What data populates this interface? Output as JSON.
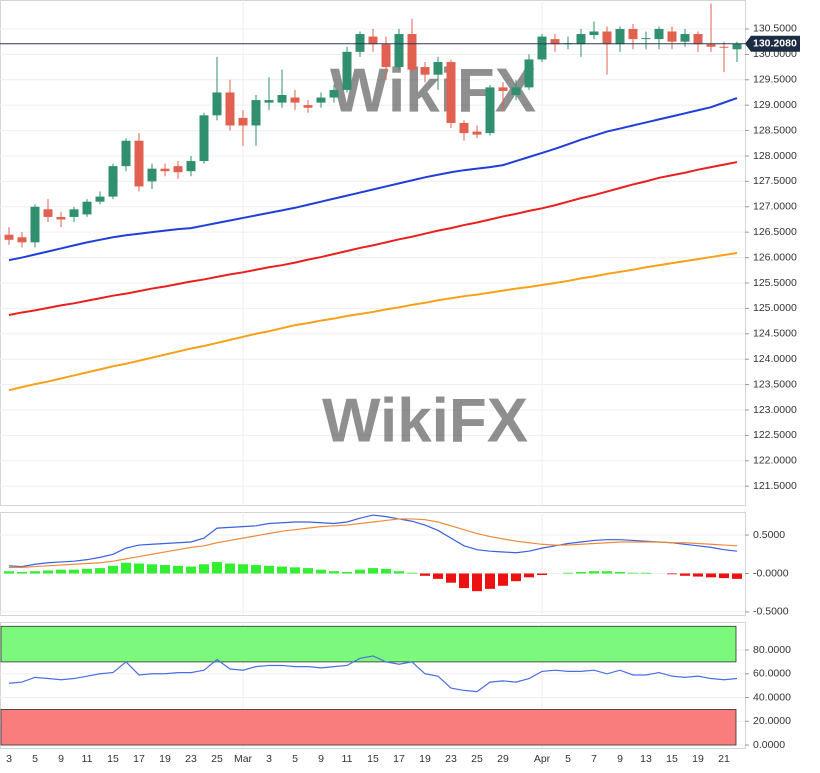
{
  "chart_data": [
    {
      "type": "candlestick",
      "watermark": "WikiFX",
      "categories": [
        "3",
        null,
        "5",
        null,
        "9",
        null,
        "11",
        null,
        "15",
        null,
        "17",
        null,
        "19",
        null,
        "23",
        null,
        "25",
        null,
        "Mar",
        null,
        "3",
        null,
        "5",
        null,
        "9",
        null,
        "11",
        null,
        "15",
        null,
        "17",
        null,
        "19",
        null,
        "23",
        null,
        "25",
        null,
        "29",
        null,
        null,
        "Apr",
        null,
        "5",
        null,
        "7",
        null,
        "9",
        null,
        "13",
        null,
        "15",
        null,
        "19",
        null,
        "21",
        null
      ],
      "open": [
        126.45,
        126.4,
        126.3,
        126.95,
        126.8,
        126.8,
        126.85,
        127.1,
        127.2,
        127.8,
        128.3,
        127.5,
        127.75,
        127.8,
        127.7,
        127.9,
        128.8,
        129.25,
        128.75,
        128.6,
        129.05,
        129.05,
        129.15,
        129.0,
        129.05,
        129.15,
        129.3,
        130.05,
        130.35,
        130.2,
        129.75,
        130.4,
        129.75,
        129.6,
        129.85,
        128.65,
        128.48,
        128.45,
        129.35,
        129.2,
        129.35,
        129.9,
        130.3,
        130.2,
        130.2,
        130.38,
        130.45,
        130.2,
        130.5,
        130.3,
        130.3,
        130.45,
        130.25,
        130.4,
        130.2,
        130.15,
        130.1
      ],
      "high": [
        126.6,
        126.5,
        127.05,
        127.15,
        126.9,
        127.0,
        127.15,
        127.3,
        127.85,
        128.35,
        128.45,
        127.85,
        127.85,
        127.9,
        128.0,
        128.85,
        129.95,
        129.5,
        128.9,
        129.2,
        129.55,
        129.7,
        129.3,
        129.1,
        129.25,
        129.4,
        130.15,
        130.45,
        130.5,
        130.35,
        130.5,
        130.7,
        129.85,
        129.95,
        129.9,
        128.7,
        128.6,
        129.4,
        129.45,
        129.5,
        130.0,
        130.4,
        130.4,
        130.35,
        130.5,
        130.65,
        130.55,
        130.55,
        130.6,
        130.45,
        130.55,
        130.55,
        130.5,
        130.45,
        131.0,
        130.25,
        130.25
      ],
      "low": [
        126.25,
        126.2,
        126.2,
        126.7,
        126.6,
        126.7,
        126.8,
        127.05,
        127.15,
        127.7,
        127.3,
        127.35,
        127.6,
        127.55,
        127.6,
        127.85,
        128.7,
        128.5,
        128.2,
        128.2,
        128.9,
        128.95,
        128.9,
        128.85,
        128.95,
        129.05,
        129.25,
        129.95,
        130.05,
        129.5,
        129.7,
        129.65,
        129.45,
        129.3,
        128.55,
        128.3,
        128.35,
        128.4,
        128.9,
        129.1,
        129.3,
        129.85,
        130.05,
        130.1,
        129.95,
        130.3,
        129.6,
        130.05,
        130.1,
        130.1,
        130.1,
        130.1,
        130.15,
        130.05,
        130.05,
        129.65,
        129.85
      ],
      "close": [
        126.35,
        126.3,
        127.0,
        126.8,
        126.75,
        126.95,
        127.1,
        127.2,
        127.8,
        128.3,
        127.4,
        127.75,
        127.7,
        127.68,
        127.9,
        128.8,
        129.25,
        128.6,
        128.6,
        129.1,
        129.1,
        129.2,
        129.05,
        128.95,
        129.15,
        129.3,
        130.05,
        130.4,
        130.2,
        129.75,
        130.4,
        129.7,
        129.6,
        129.85,
        128.65,
        128.45,
        128.42,
        129.35,
        129.28,
        129.35,
        129.9,
        130.35,
        130.2,
        130.22,
        130.4,
        130.45,
        130.2,
        130.5,
        130.3,
        130.32,
        130.5,
        130.25,
        130.4,
        130.2,
        130.15,
        130.13,
        130.208
      ],
      "up_color": "#2f8f6f",
      "down_color": "#e0614f",
      "series": [
        {
          "color": "#1f3fd8",
          "values": [
            125.95,
            126,
            126.06,
            126.12,
            126.18,
            126.24,
            126.3,
            126.35,
            126.4,
            126.44,
            126.47,
            126.5,
            126.53,
            126.56,
            126.58,
            126.63,
            126.68,
            126.73,
            126.78,
            126.83,
            126.88,
            126.93,
            126.98,
            127.04,
            127.1,
            127.16,
            127.22,
            127.28,
            127.34,
            127.4,
            127.46,
            127.52,
            127.58,
            127.63,
            127.68,
            127.72,
            127.75,
            127.78,
            127.82,
            127.9,
            127.98,
            128.06,
            128.14,
            128.23,
            128.32,
            128.4,
            128.48,
            128.54,
            128.6,
            128.66,
            128.72,
            128.78,
            128.84,
            128.9,
            128.96,
            129.05,
            129.14
          ]
        },
        {
          "color": "#e8201e",
          "values": [
            124.87,
            124.92,
            124.96,
            125.01,
            125.06,
            125.1,
            125.15,
            125.2,
            125.25,
            125.29,
            125.34,
            125.39,
            125.43,
            125.48,
            125.53,
            125.57,
            125.62,
            125.67,
            125.71,
            125.76,
            125.81,
            125.85,
            125.9,
            125.96,
            126.01,
            126.07,
            126.13,
            126.19,
            126.24,
            126.3,
            126.36,
            126.41,
            126.47,
            126.53,
            126.58,
            126.64,
            126.69,
            126.75,
            126.81,
            126.86,
            126.92,
            126.97,
            127.03,
            127.1,
            127.17,
            127.23,
            127.3,
            127.37,
            127.44,
            127.5,
            127.57,
            127.62,
            127.67,
            127.73,
            127.78,
            127.83,
            127.88
          ]
        },
        {
          "color": "#f7a11a",
          "values": [
            123.39,
            123.45,
            123.51,
            123.56,
            123.62,
            123.68,
            123.74,
            123.8,
            123.86,
            123.91,
            123.97,
            124.03,
            124.09,
            124.15,
            124.21,
            124.26,
            124.32,
            124.38,
            124.44,
            124.5,
            124.55,
            124.61,
            124.67,
            124.71,
            124.76,
            124.8,
            124.85,
            124.89,
            124.93,
            124.98,
            125.02,
            125.07,
            125.11,
            125.16,
            125.2,
            125.24,
            125.27,
            125.31,
            125.35,
            125.39,
            125.42,
            125.46,
            125.5,
            125.54,
            125.59,
            125.63,
            125.68,
            125.72,
            125.76,
            125.81,
            125.85,
            125.89,
            125.93,
            125.97,
            126.01,
            126.05,
            126.09
          ]
        }
      ],
      "last_price": {
        "value": 130.208,
        "label": "130.2080"
      },
      "ylim": [
        121.13,
        131.07
      ],
      "yticks": [
        {
          "value": 121.5,
          "label": "121.5000"
        },
        {
          "value": 122,
          "label": "122.0000"
        },
        {
          "value": 122.5,
          "label": "122.5000"
        },
        {
          "value": 123,
          "label": "123.0000"
        },
        {
          "value": 123.5,
          "label": "123.5000"
        },
        {
          "value": 124,
          "label": "124.0000"
        },
        {
          "value": 124.5,
          "label": "124.5000"
        },
        {
          "value": 125,
          "label": "125.0000"
        },
        {
          "value": 125.5,
          "label": "125.5000"
        },
        {
          "value": 126,
          "label": "126.0000"
        },
        {
          "value": 126.5,
          "label": "126.5000"
        },
        {
          "value": 127,
          "label": "127.0000"
        },
        {
          "value": 127.5,
          "label": "127.5000"
        },
        {
          "value": 128,
          "label": "128.0000"
        },
        {
          "value": 128.5,
          "label": "128.5000"
        },
        {
          "value": 129,
          "label": "129.0000"
        },
        {
          "value": 129.5,
          "label": "129.5000"
        },
        {
          "value": 130,
          "label": "130.0000"
        },
        {
          "value": 130.5,
          "label": "130.5000"
        }
      ],
      "grid": true
    },
    {
      "type": "macd",
      "series": [
        {
          "color": "#3a5fe0",
          "values": [
            0.1,
            0.09,
            0.12,
            0.14,
            0.15,
            0.16,
            0.18,
            0.21,
            0.25,
            0.33,
            0.37,
            0.38,
            0.39,
            0.4,
            0.41,
            0.46,
            0.59,
            0.6,
            0.61,
            0.62,
            0.65,
            0.66,
            0.67,
            0.67,
            0.66,
            0.65,
            0.67,
            0.72,
            0.76,
            0.74,
            0.71,
            0.68,
            0.63,
            0.56,
            0.46,
            0.36,
            0.31,
            0.29,
            0.28,
            0.27,
            0.29,
            0.33,
            0.36,
            0.39,
            0.41,
            0.43,
            0.44,
            0.44,
            0.43,
            0.42,
            0.41,
            0.4,
            0.38,
            0.36,
            0.34,
            0.31,
            0.29
          ]
        },
        {
          "color": "#f08a3a",
          "values": [
            0.08,
            0.08,
            0.09,
            0.1,
            0.11,
            0.12,
            0.13,
            0.14,
            0.16,
            0.19,
            0.22,
            0.25,
            0.28,
            0.31,
            0.34,
            0.36,
            0.4,
            0.43,
            0.46,
            0.49,
            0.52,
            0.55,
            0.57,
            0.59,
            0.61,
            0.62,
            0.63,
            0.65,
            0.67,
            0.69,
            0.71,
            0.71,
            0.7,
            0.67,
            0.62,
            0.57,
            0.52,
            0.48,
            0.45,
            0.42,
            0.4,
            0.38,
            0.37,
            0.37,
            0.38,
            0.39,
            0.4,
            0.41,
            0.41,
            0.41,
            0.41,
            0.4,
            0.4,
            0.39,
            0.38,
            0.37,
            0.36
          ]
        }
      ],
      "histogram": {
        "up_color": "#33ee33",
        "down_color": "#ee1111",
        "values": [
          0.03,
          0.02,
          0.03,
          0.04,
          0.05,
          0.05,
          0.06,
          0.07,
          0.1,
          0.14,
          0.13,
          0.12,
          0.11,
          0.1,
          0.09,
          0.12,
          0.15,
          0.13,
          0.12,
          0.11,
          0.1,
          0.09,
          0.08,
          0.07,
          0.05,
          0.03,
          0.02,
          0.05,
          0.07,
          0.06,
          0.03,
          0.01,
          -0.03,
          -0.07,
          -0.12,
          -0.19,
          -0.23,
          -0.2,
          -0.16,
          -0.1,
          -0.05,
          -0.02,
          0,
          0.01,
          0.02,
          0.03,
          0.03,
          0.02,
          0.01,
          0.01,
          0,
          -0.01,
          -0.03,
          -0.04,
          -0.05,
          -0.06,
          -0.07
        ]
      },
      "ylim": [
        -0.54,
        0.8
      ],
      "yticks": [
        {
          "value": -0.5,
          "label": "-0.5000"
        },
        {
          "value": 0,
          "label": "-0.0000"
        },
        {
          "value": 0.5,
          "label": "0.5000"
        }
      ],
      "grid": true
    },
    {
      "type": "line",
      "series": [
        {
          "color": "#4a6fe0",
          "values": [
            52,
            53,
            57,
            56,
            55,
            56,
            58,
            60,
            61,
            70,
            59,
            60,
            60,
            61,
            61,
            63,
            72,
            64,
            63,
            66,
            67,
            67,
            66,
            66,
            65,
            66,
            67,
            73,
            75,
            70,
            68,
            70,
            60,
            58,
            48,
            46,
            45,
            53,
            54,
            53,
            56,
            62,
            63,
            62,
            62,
            63,
            60,
            63,
            59,
            59,
            61,
            58,
            57,
            58,
            56,
            55,
            56
          ]
        }
      ],
      "zones": [
        {
          "from": 70,
          "to": 100,
          "color": "#7cf87c"
        },
        {
          "from": 0,
          "to": 30,
          "color": "#fa7d7d"
        }
      ],
      "ylim": [
        -2.5,
        103.6
      ],
      "yticks": [
        {
          "value": 0,
          "label": "0.0000"
        },
        {
          "value": 20,
          "label": "20.0000"
        },
        {
          "value": 40,
          "label": "40.0000"
        },
        {
          "value": 60,
          "label": "60.0000"
        },
        {
          "value": 80,
          "label": "80.0000"
        }
      ],
      "grid": true
    }
  ]
}
